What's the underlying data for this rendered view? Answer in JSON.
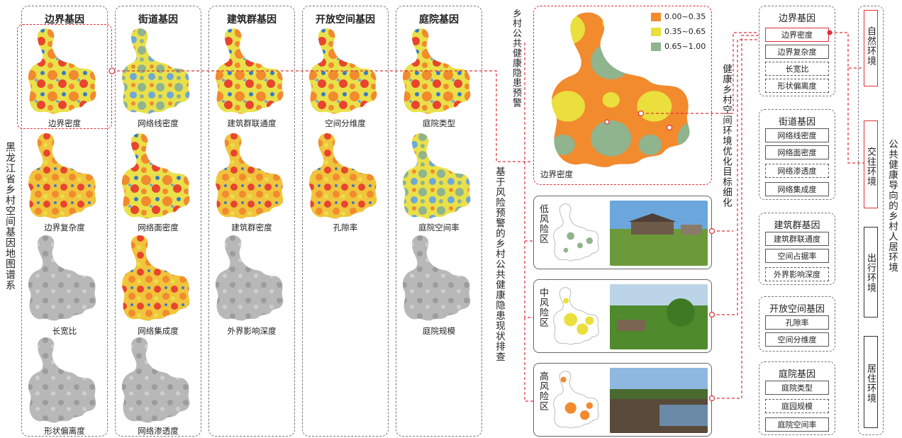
{
  "left_title": "黑龙江省乡村空间基因地图谱系",
  "columns": [
    {
      "title": "边界基因",
      "captions": [
        "边界密度",
        "边界复杂度",
        "长宽比",
        "形状偏离度"
      ]
    },
    {
      "title": "街道基因",
      "captions": [
        "网络线密度",
        "网络面密度",
        "网络集成度",
        "网络渗透度"
      ]
    },
    {
      "title": "建筑群基因",
      "captions": [
        "建筑群联通度",
        "建筑群密度",
        "外界影响深度"
      ]
    },
    {
      "title": "开放空间基因",
      "captions": [
        "空间分维度",
        "孔隙率"
      ]
    },
    {
      "title": "庭院基因",
      "captions": [
        "庭院类型",
        "庭院空间率",
        "庭院规模"
      ]
    }
  ],
  "labels": {
    "warning": "乡村公共健康隐患预警",
    "screening": "基于风险预警的乡村公共健康隐患现状排查",
    "optimize": "健康乡村空间环境优化目标细化",
    "public": "公共健康导向的乡村人居环境"
  },
  "big_map_caption": "边界密度",
  "legend": [
    {
      "label": "0.00~0.35",
      "color": "#f28a2e"
    },
    {
      "label": "0.35~0.65",
      "color": "#eadf3c"
    },
    {
      "label": "0.65~1.00",
      "color": "#8fb48e"
    }
  ],
  "risk": [
    {
      "label": "低风险区"
    },
    {
      "label": "中风险区"
    },
    {
      "label": "高风险区"
    }
  ],
  "gene_groups": [
    {
      "title": "边界基因",
      "items": [
        "边界密度",
        "边界复杂度",
        "长宽比",
        "形状偏离度"
      ]
    },
    {
      "title": "街道基因",
      "items": [
        "网络线密度",
        "网络面密度",
        "网络渗透度",
        "网络集成度"
      ]
    },
    {
      "title": "建筑群基因",
      "items": [
        "建筑群联通度",
        "空间占据率",
        "外界影响深度"
      ]
    },
    {
      "title": "开放空间基因",
      "items": [
        "孔隙率",
        "空间分维度"
      ]
    },
    {
      "title": "庭院基因",
      "items": [
        "庭院类型",
        "庭园规模",
        "庭院空间率"
      ]
    }
  ],
  "environments": [
    "自然环境",
    "交往环境",
    "出行环境",
    "居住环境"
  ],
  "colors": {
    "accent": "#e0303a",
    "high": "#f28a2e",
    "mid": "#eadf3c",
    "low": "#8fb48e"
  }
}
